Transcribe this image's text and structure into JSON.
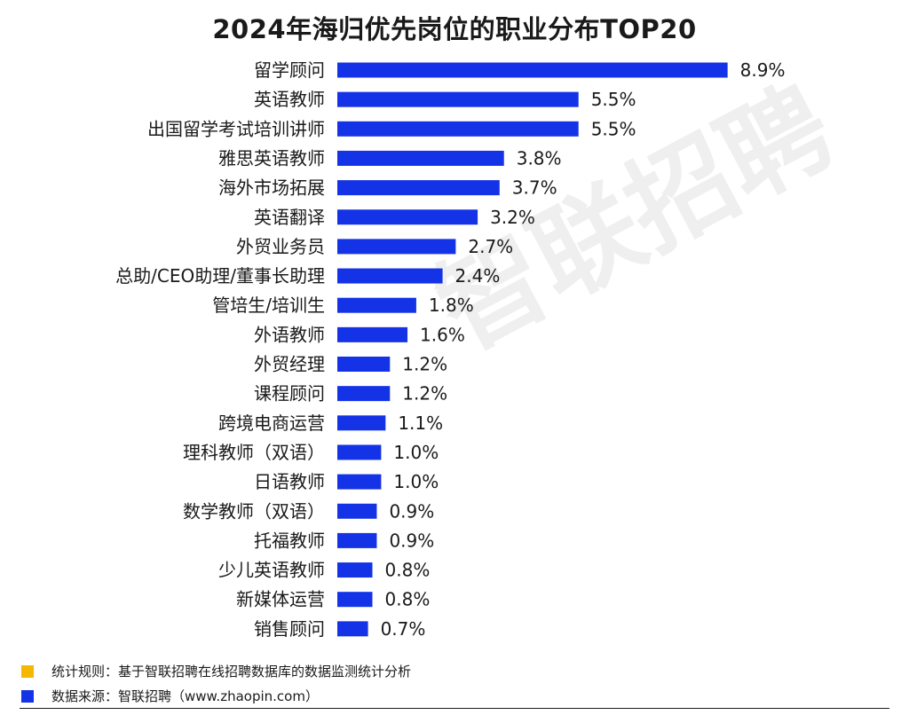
{
  "chart_data": {
    "type": "bar",
    "orientation": "horizontal",
    "title": "2024年海归优先岗位的职业分布TOP20",
    "categories": [
      "留学顾问",
      "英语教师",
      "出国留学考试培训讲师",
      "雅思英语教师",
      "海外市场拓展",
      "英语翻译",
      "外贸业务员",
      "总助/CEO助理/董事长助理",
      "管培生/培训生",
      "外语教师",
      "外贸经理",
      "课程顾问",
      "跨境电商运营",
      "理科教师（双语）",
      "日语教师",
      "数学教师（双语）",
      "托福教师",
      "少儿英语教师",
      "新媒体运营",
      "销售顾问"
    ],
    "values": [
      8.9,
      5.5,
      5.5,
      3.8,
      3.7,
      3.2,
      2.7,
      2.4,
      1.8,
      1.6,
      1.2,
      1.2,
      1.1,
      1.0,
      1.0,
      0.9,
      0.9,
      0.8,
      0.8,
      0.7
    ],
    "value_labels": [
      "8.9%",
      "5.5%",
      "5.5%",
      "3.8%",
      "3.7%",
      "3.2%",
      "2.7%",
      "2.4%",
      "1.8%",
      "1.6%",
      "1.2%",
      "1.2%",
      "1.1%",
      "1.0%",
      "1.0%",
      "0.9%",
      "0.9%",
      "0.8%",
      "0.8%",
      "0.7%"
    ],
    "bar_color": "#1432e6",
    "grid": false,
    "legend": "none"
  },
  "watermark": "智联招聘",
  "footer": {
    "rule_text": "统计规则：基于智联招聘在线招聘数据库的数据监测统计分析",
    "rule_color": "#f5b800",
    "source_text": "数据来源：智联招聘（www.zhaopin.com）",
    "source_color": "#1432e6"
  }
}
